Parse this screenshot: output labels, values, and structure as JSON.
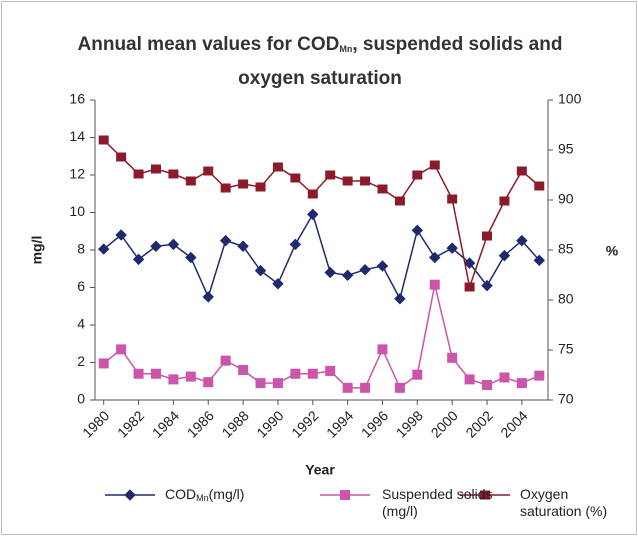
{
  "chart_data": {
    "type": "line",
    "title": {
      "before": "Annual mean values for COD",
      "subscript": "Mn",
      "after": ", suspended solids and oxygen saturation"
    },
    "x_label": "Year",
    "y_label": "mg/l",
    "y2_label": "%",
    "x": [
      1980,
      1981,
      1982,
      1983,
      1984,
      1985,
      1986,
      1987,
      1988,
      1989,
      1990,
      1991,
      1992,
      1993,
      1994,
      1995,
      1996,
      1997,
      1998,
      1999,
      2000,
      2001,
      2002,
      2003,
      2004,
      2005
    ],
    "xlim": [
      1979.5,
      2005.5
    ],
    "xticks": [
      1980,
      1982,
      1984,
      1986,
      1988,
      1990,
      1992,
      1994,
      1996,
      1998,
      2000,
      2002,
      2004
    ],
    "ylim": [
      0,
      16
    ],
    "yticks": [
      0,
      2,
      4,
      6,
      8,
      10,
      12,
      14,
      16
    ],
    "y2lim": [
      70,
      100
    ],
    "y2ticks": [
      70,
      75,
      80,
      85,
      90,
      95,
      100
    ],
    "grid": false,
    "legend": "bottom",
    "series": [
      {
        "name": "COD",
        "name_subscript": "Mn",
        "name_after": "(mg/l)",
        "color": "#1f2a6e",
        "marker": "diamond",
        "values": [
          8.05,
          8.8,
          7.5,
          8.2,
          8.3,
          7.6,
          5.5,
          8.5,
          8.2,
          6.9,
          6.2,
          8.3,
          9.9,
          6.8,
          6.65,
          6.95,
          7.15,
          5.4,
          9.05,
          7.6,
          8.1,
          7.3,
          6.1,
          7.7,
          8.5,
          7.45
        ]
      },
      {
        "name": "Suspended solids (mg/l)",
        "color": "#cc55aa",
        "marker": "square",
        "values": [
          1.95,
          2.7,
          1.4,
          1.4,
          1.1,
          1.25,
          0.95,
          2.1,
          1.6,
          0.9,
          0.9,
          1.4,
          1.4,
          1.55,
          0.65,
          0.65,
          2.7,
          0.65,
          1.35,
          6.15,
          2.25,
          1.1,
          0.8,
          1.2,
          0.9,
          1.3
        ]
      },
      {
        "name": "Oxygen saturation (%)",
        "color": "#8b1a2a",
        "marker": "rect",
        "axis": "y2",
        "values": [
          96,
          94.3,
          92.6,
          93.1,
          92.6,
          91.9,
          92.9,
          91.2,
          91.6,
          91.3,
          93.3,
          92.2,
          90.6,
          92.5,
          91.9,
          91.9,
          91.1,
          89.9,
          92.5,
          93.5,
          90.1,
          81.3,
          86.4,
          89.9,
          92.9,
          91.4
        ]
      }
    ]
  }
}
